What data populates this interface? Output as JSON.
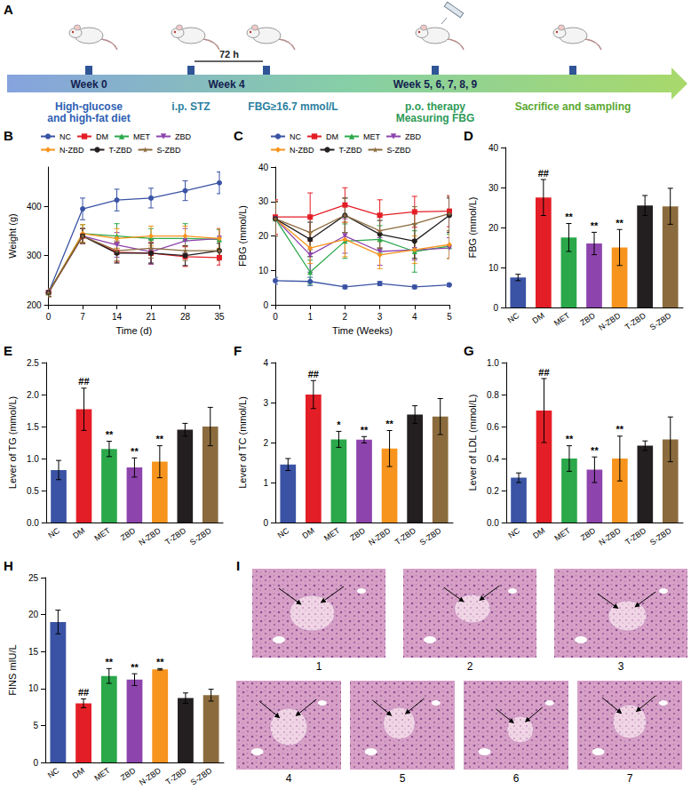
{
  "timeline": {
    "panel": "A",
    "stages": [
      {
        "week": "Week 0",
        "text": [
          "High-glucose",
          "and high-fat diet"
        ]
      },
      {
        "week": "Week 4",
        "text": [
          "i.p. STZ",
          "FBG≥16.7 mmol/L"
        ],
        "interval": "72 h"
      },
      {
        "week": "Week 5, 6, 7, 8, 9",
        "text": [
          "p.o. therapy",
          "Measuring FBG"
        ]
      },
      {
        "text": [
          "Sacrifice and sampling"
        ]
      }
    ]
  },
  "chart_data": [
    {
      "panel": "B",
      "type": "line",
      "x_label": "Time (d)",
      "y_label": "Weight (g)",
      "x": [
        0,
        7,
        14,
        21,
        28,
        35
      ],
      "xlim": [
        0,
        35
      ],
      "xticks": [
        0,
        7,
        14,
        21,
        28,
        35
      ],
      "ylim": [
        200,
        480
      ],
      "yticks": [
        200,
        300,
        400
      ],
      "grid": false,
      "legend": "top",
      "series": [
        {
          "name": "NC",
          "color": "#3a53a4",
          "marker": "circle",
          "values": [
            225,
            395,
            413,
            417,
            432,
            448
          ],
          "errors": [
            8,
            22,
            22,
            20,
            20,
            22
          ]
        },
        {
          "name": "DM",
          "color": "#e41e26",
          "marker": "square",
          "values": [
            225,
            340,
            307,
            305,
            298,
            296
          ],
          "errors": [
            8,
            15,
            20,
            22,
            20,
            15
          ]
        },
        {
          "name": "MET",
          "color": "#2aa84a",
          "marker": "triangle",
          "values": [
            225,
            345,
            340,
            335,
            335,
            333
          ],
          "errors": [
            8,
            18,
            25,
            20,
            30,
            20
          ]
        },
        {
          "name": "ZBD",
          "color": "#8e44ad",
          "marker": "triangle-down",
          "values": [
            225,
            340,
            322,
            308,
            330,
            335
          ],
          "errors": [
            8,
            15,
            25,
            25,
            25,
            20
          ]
        },
        {
          "name": "N-ZBD",
          "color": "#f7941d",
          "marker": "diamond",
          "values": [
            225,
            345,
            335,
            340,
            340,
            335
          ],
          "errors": [
            8,
            18,
            20,
            20,
            20,
            20
          ]
        },
        {
          "name": "T-ZBD",
          "color": "#231f20",
          "marker": "circle",
          "values": [
            225,
            340,
            305,
            305,
            300,
            310
          ],
          "errors": [
            8,
            15,
            20,
            20,
            20,
            15
          ]
        },
        {
          "name": "S-ZBD",
          "color": "#8b6b3d",
          "marker": "star",
          "values": [
            225,
            340,
            310,
            315,
            310,
            310
          ],
          "errors": [
            8,
            15,
            20,
            20,
            20,
            20
          ]
        }
      ]
    },
    {
      "panel": "C",
      "type": "line",
      "x_label": "Time (Weeks)",
      "y_label": "FBG (mmol/L)",
      "x": [
        0,
        1,
        2,
        3,
        4,
        5
      ],
      "xlim": [
        0,
        5
      ],
      "xticks": [
        0,
        1,
        2,
        3,
        4,
        5
      ],
      "ylim": [
        0,
        40
      ],
      "yticks": [
        0,
        10,
        20,
        30,
        40
      ],
      "grid": false,
      "legend": "top",
      "series": [
        {
          "name": "NC",
          "color": "#3a53a4",
          "marker": "circle",
          "values": [
            7,
            6.8,
            5.2,
            6.2,
            5.2,
            5.8
          ],
          "errors": [
            1,
            1.2,
            0.5,
            0.6,
            0.5,
            0.5
          ]
        },
        {
          "name": "DM",
          "color": "#e41e26",
          "marker": "square",
          "values": [
            25.5,
            25.5,
            29,
            26,
            27,
            27.2
          ],
          "errors": [
            5,
            7,
            5,
            4.5,
            4.5,
            4.5
          ]
        },
        {
          "name": "MET",
          "color": "#2aa84a",
          "marker": "triangle",
          "values": [
            25,
            9.5,
            18.5,
            19,
            15.5,
            17
          ],
          "errors": [
            5,
            3.5,
            5,
            4,
            6,
            3.5
          ]
        },
        {
          "name": "ZBD",
          "color": "#8e44ad",
          "marker": "triangle-down",
          "values": [
            25,
            14.5,
            20,
            15.5,
            16,
            16.5
          ],
          "errors": [
            5,
            5,
            5,
            4,
            3,
            3
          ]
        },
        {
          "name": "N-ZBD",
          "color": "#f7941d",
          "marker": "diamond",
          "values": [
            25,
            16.5,
            19,
            14.5,
            16,
            17.5
          ],
          "errors": [
            5,
            4.5,
            5,
            4,
            4,
            4
          ]
        },
        {
          "name": "T-ZBD",
          "color": "#231f20",
          "marker": "circle",
          "values": [
            25,
            19,
            26,
            20.5,
            18.5,
            26
          ],
          "errors": [
            5,
            5,
            5,
            4,
            5,
            5
          ]
        },
        {
          "name": "S-ZBD",
          "color": "#8b6b3d",
          "marker": "star",
          "values": [
            25,
            21,
            26,
            21.5,
            23.5,
            26.5
          ],
          "errors": [
            5,
            5,
            5,
            5,
            5,
            5
          ]
        }
      ]
    },
    {
      "panel": "D",
      "type": "bar",
      "y_label": "FBG (mmol/L)",
      "categories": [
        "NC",
        "DM",
        "MET",
        "ZBD",
        "N-ZBD",
        "T-ZBD",
        "S-ZBD"
      ],
      "values": [
        7.5,
        27.5,
        17.5,
        16,
        15,
        25.5,
        25.3
      ],
      "errors": [
        0.8,
        4.5,
        3.5,
        2.8,
        4.5,
        2.5,
        4.5
      ],
      "colors": [
        "#3a53a4",
        "#e41e26",
        "#2aa84a",
        "#8e44ad",
        "#f7941d",
        "#231f20",
        "#8b6b3d"
      ],
      "annotations": [
        null,
        "##",
        "**",
        "**",
        "**",
        null,
        null
      ],
      "ylim": [
        0,
        40
      ],
      "yticks": [
        0,
        10,
        20,
        30,
        40
      ],
      "grid": false
    },
    {
      "panel": "E",
      "type": "bar",
      "y_label": "Lever of TG (mmol/L)",
      "categories": [
        "NC",
        "DM",
        "MET",
        "ZBD",
        "N-ZBD",
        "T-ZBD",
        "S-ZBD"
      ],
      "values": [
        0.82,
        1.77,
        1.15,
        0.86,
        0.95,
        1.45,
        1.5
      ],
      "errors": [
        0.15,
        0.33,
        0.12,
        0.15,
        0.25,
        0.1,
        0.3
      ],
      "colors": [
        "#3a53a4",
        "#e41e26",
        "#2aa84a",
        "#8e44ad",
        "#f7941d",
        "#231f20",
        "#8b6b3d"
      ],
      "annotations": [
        null,
        "##",
        "**",
        "**",
        "**",
        null,
        null
      ],
      "ylim": [
        0,
        2.5
      ],
      "yticks": [
        {
          "value": 0,
          "label": "0.0"
        },
        0.5,
        {
          "value": 1,
          "label": "1.0"
        },
        1.5,
        {
          "value": 2,
          "label": "2.0"
        },
        2.5
      ],
      "grid": false
    },
    {
      "panel": "F",
      "type": "bar",
      "y_label": "Lever of TC (mmol/L)",
      "categories": [
        "NC",
        "DM",
        "MET",
        "ZBD",
        "N-ZBD",
        "T-ZBD",
        "S-ZBD"
      ],
      "values": [
        1.45,
        3.2,
        2.08,
        2.07,
        1.85,
        2.7,
        2.65
      ],
      "errors": [
        0.15,
        0.35,
        0.2,
        0.08,
        0.45,
        0.22,
        0.45
      ],
      "colors": [
        "#3a53a4",
        "#e41e26",
        "#2aa84a",
        "#8e44ad",
        "#f7941d",
        "#231f20",
        "#8b6b3d"
      ],
      "annotations": [
        null,
        "##",
        "*",
        "**",
        "**",
        null,
        null
      ],
      "ylim": [
        0,
        4
      ],
      "yticks": [
        0,
        1,
        2,
        3,
        4
      ],
      "grid": false
    },
    {
      "panel": "G",
      "type": "bar",
      "y_label": "Lever of LDL (mmol/L)",
      "categories": [
        "NC",
        "DM",
        "MET",
        "ZBD",
        "N-ZBD",
        "T-ZBD",
        "S-ZBD"
      ],
      "values": [
        0.28,
        0.7,
        0.4,
        0.33,
        0.4,
        0.48,
        0.52
      ],
      "errors": [
        0.03,
        0.2,
        0.08,
        0.08,
        0.14,
        0.03,
        0.14
      ],
      "colors": [
        "#3a53a4",
        "#e41e26",
        "#2aa84a",
        "#8e44ad",
        "#f7941d",
        "#231f20",
        "#8b6b3d"
      ],
      "annotations": [
        null,
        "##",
        "**",
        "**",
        "**",
        null,
        null
      ],
      "ylim": [
        0,
        1
      ],
      "yticks": [
        {
          "value": 0,
          "label": "0.0"
        },
        0.2,
        0.4,
        0.6,
        0.8,
        {
          "value": 1,
          "label": "1.0"
        }
      ],
      "grid": false
    },
    {
      "panel": "H",
      "type": "bar",
      "y_label": "FINS mIU/L",
      "categories": [
        "NC",
        "DM",
        "MET",
        "ZBD",
        "N-ZBD",
        "T-ZBD",
        "S-ZBD"
      ],
      "values": [
        19,
        8,
        11.7,
        11.2,
        12.6,
        8.7,
        9.1
      ],
      "errors": [
        1.6,
        0.6,
        1,
        0.8,
        0.1,
        0.7,
        0.8
      ],
      "colors": [
        "#3a53a4",
        "#e41e26",
        "#2aa84a",
        "#8e44ad",
        "#f7941d",
        "#231f20",
        "#8b6b3d"
      ],
      "annotations": [
        null,
        "##",
        "**",
        "**",
        "**",
        null,
        null
      ],
      "ylim": [
        0,
        25
      ],
      "yticks": [
        0,
        5,
        10,
        15,
        20,
        25
      ],
      "grid": false
    }
  ],
  "histology": {
    "panel": "I",
    "labels": [
      "1",
      "2",
      "3",
      "4",
      "5",
      "6",
      "7"
    ]
  }
}
